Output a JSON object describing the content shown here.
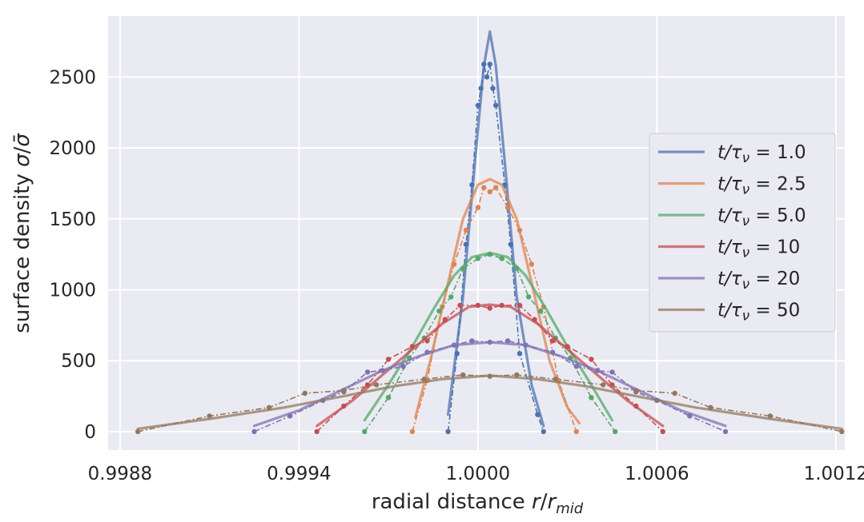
{
  "chart_data": {
    "type": "line",
    "xlabel": "radial distance r/r_mid",
    "ylabel": "surface density σ/σ̄",
    "x_ticks": [
      0.9988,
      0.9994,
      1.0,
      1.0006,
      1.0012
    ],
    "x_tick_labels": [
      "0.9988",
      "0.9994",
      "1.0000",
      "1.0006",
      "1.0012"
    ],
    "y_ticks": [
      0,
      500,
      1000,
      1500,
      2000,
      2500
    ],
    "y_tick_labels": [
      "0",
      "500",
      "1000",
      "1500",
      "2000",
      "2500"
    ],
    "xlim": [
      0.99876,
      1.00123
    ],
    "ylim": [
      -130,
      2930
    ],
    "grid": true,
    "legend_position": "center-right",
    "series": [
      {
        "name": "t/τ_ν = 1.0",
        "label_prefix": "t/τ",
        "label_sub": "ν",
        "label_value": "= 1.0",
        "color": "#4c72b0",
        "smooth": [
          [
            0.9999,
            120
          ],
          [
            0.99995,
            950
          ],
          [
            0.99999,
            1900
          ],
          [
            1.00002,
            2580
          ],
          [
            1.00004,
            2820
          ],
          [
            1.00006,
            2580
          ],
          [
            1.00009,
            1900
          ],
          [
            1.00013,
            950
          ],
          [
            1.00018,
            330
          ],
          [
            1.00022,
            40
          ]
        ],
        "points": [
          [
            0.9999,
            0
          ],
          [
            0.99993,
            550
          ],
          [
            0.99996,
            1320
          ],
          [
            0.99998,
            1740
          ],
          [
            1.0,
            2300
          ],
          [
            1.00001,
            2420
          ],
          [
            1.00002,
            2590
          ],
          [
            1.00003,
            2500
          ],
          [
            1.00004,
            2590
          ],
          [
            1.00005,
            2420
          ],
          [
            1.00006,
            2300
          ],
          [
            1.00009,
            1740
          ],
          [
            1.00011,
            1320
          ],
          [
            1.00014,
            550
          ],
          [
            1.0002,
            120
          ],
          [
            1.00022,
            0
          ]
        ]
      },
      {
        "name": "t/τ_ν = 2.5",
        "label_prefix": "t/τ",
        "label_sub": "ν",
        "label_value": "= 2.5",
        "color": "#dd8452",
        "smooth": [
          [
            0.99979,
            100
          ],
          [
            0.99984,
            500
          ],
          [
            0.9999,
            1050
          ],
          [
            0.99995,
            1500
          ],
          [
            1.0,
            1740
          ],
          [
            1.00004,
            1780
          ],
          [
            1.00008,
            1740
          ],
          [
            1.00013,
            1500
          ],
          [
            1.00018,
            1050
          ],
          [
            1.00024,
            500
          ],
          [
            1.0003,
            170
          ],
          [
            1.00034,
            60
          ]
        ],
        "points": [
          [
            0.99978,
            0
          ],
          [
            0.99983,
            360
          ],
          [
            0.99988,
            880
          ],
          [
            0.99992,
            1180
          ],
          [
            0.99996,
            1420
          ],
          [
            1.0,
            1580
          ],
          [
            1.00002,
            1720
          ],
          [
            1.00004,
            1690
          ],
          [
            1.00006,
            1720
          ],
          [
            1.0001,
            1580
          ],
          [
            1.00014,
            1420
          ],
          [
            1.00018,
            1180
          ],
          [
            1.00022,
            880
          ],
          [
            1.00027,
            360
          ],
          [
            1.00033,
            0
          ]
        ]
      },
      {
        "name": "t/τ_ν = 5.0",
        "label_prefix": "t/τ",
        "label_sub": "ν",
        "label_value": "= 5.0",
        "color": "#55a868",
        "smooth": [
          [
            0.99962,
            80
          ],
          [
            0.9997,
            330
          ],
          [
            0.99978,
            600
          ],
          [
            0.99985,
            860
          ],
          [
            0.99992,
            1100
          ],
          [
            0.99998,
            1230
          ],
          [
            1.00004,
            1260
          ],
          [
            1.0001,
            1230
          ],
          [
            1.00016,
            1100
          ],
          [
            1.00023,
            860
          ],
          [
            1.0003,
            600
          ],
          [
            1.00038,
            330
          ],
          [
            1.00045,
            80
          ]
        ],
        "points": [
          [
            0.99962,
            0
          ],
          [
            0.9997,
            240
          ],
          [
            0.99977,
            520
          ],
          [
            0.99982,
            660
          ],
          [
            0.99987,
            850
          ],
          [
            0.99991,
            950
          ],
          [
            0.99995,
            1150
          ],
          [
            1.0,
            1220
          ],
          [
            1.00004,
            1250
          ],
          [
            1.00008,
            1220
          ],
          [
            1.00013,
            1150
          ],
          [
            1.00017,
            950
          ],
          [
            1.00021,
            850
          ],
          [
            1.00026,
            660
          ],
          [
            1.00031,
            520
          ],
          [
            1.00038,
            240
          ],
          [
            1.00046,
            0
          ]
        ]
      },
      {
        "name": "t/τ_ν = 10",
        "label_prefix": "t/τ",
        "label_sub": "ν",
        "label_value": "= 10",
        "color": "#c44e52",
        "smooth": [
          [
            0.99946,
            40
          ],
          [
            0.99958,
            220
          ],
          [
            0.99968,
            400
          ],
          [
            0.99978,
            580
          ],
          [
            0.99988,
            760
          ],
          [
            0.99997,
            880
          ],
          [
            1.00004,
            895
          ],
          [
            1.00011,
            880
          ],
          [
            1.0002,
            760
          ],
          [
            1.0003,
            580
          ],
          [
            1.0004,
            400
          ],
          [
            1.0005,
            220
          ],
          [
            1.00062,
            40
          ]
        ],
        "points": [
          [
            0.99946,
            0
          ],
          [
            0.99955,
            180
          ],
          [
            0.99963,
            330
          ],
          [
            0.9997,
            510
          ],
          [
            0.99978,
            600
          ],
          [
            0.99983,
            640
          ],
          [
            0.99989,
            790
          ],
          [
            0.99994,
            890
          ],
          [
            1.0,
            890
          ],
          [
            1.00004,
            870
          ],
          [
            1.00008,
            890
          ],
          [
            1.00014,
            890
          ],
          [
            1.00019,
            790
          ],
          [
            1.00025,
            640
          ],
          [
            1.0003,
            600
          ],
          [
            1.00038,
            510
          ],
          [
            1.00045,
            330
          ],
          [
            1.00053,
            180
          ],
          [
            1.00062,
            0
          ]
        ]
      },
      {
        "name": "t/τ_ν = 20",
        "label_prefix": "t/τ",
        "label_sub": "ν",
        "label_value": "= 20",
        "color": "#8172b3",
        "smooth": [
          [
            0.99925,
            40
          ],
          [
            0.9994,
            150
          ],
          [
            0.99955,
            300
          ],
          [
            0.99968,
            430
          ],
          [
            0.9998,
            530
          ],
          [
            0.99992,
            610
          ],
          [
            1.00004,
            630
          ],
          [
            1.00016,
            610
          ],
          [
            1.00028,
            530
          ],
          [
            1.0004,
            430
          ],
          [
            1.00053,
            300
          ],
          [
            1.00068,
            150
          ],
          [
            1.00083,
            40
          ]
        ],
        "points": [
          [
            0.99925,
            0
          ],
          [
            0.99937,
            110
          ],
          [
            0.99948,
            220
          ],
          [
            0.99955,
            280
          ],
          [
            0.99963,
            420
          ],
          [
            0.99968,
            430
          ],
          [
            0.99975,
            460
          ],
          [
            0.99983,
            560
          ],
          [
            0.99992,
            610
          ],
          [
            0.99998,
            640
          ],
          [
            1.00004,
            630
          ],
          [
            1.0001,
            640
          ],
          [
            1.00016,
            610
          ],
          [
            1.00025,
            560
          ],
          [
            1.00033,
            460
          ],
          [
            1.0004,
            430
          ],
          [
            1.00045,
            420
          ],
          [
            1.00053,
            280
          ],
          [
            1.0006,
            220
          ],
          [
            1.00071,
            110
          ],
          [
            1.00083,
            0
          ]
        ]
      },
      {
        "name": "t/τ_ν = 50",
        "label_prefix": "t/τ",
        "label_sub": "ν",
        "label_value": "= 50",
        "color": "#937860",
        "smooth": [
          [
            0.99886,
            20
          ],
          [
            0.9991,
            90
          ],
          [
            0.99935,
            170
          ],
          [
            0.99955,
            250
          ],
          [
            0.99972,
            320
          ],
          [
            0.99988,
            370
          ],
          [
            1.00004,
            395
          ],
          [
            1.0002,
            370
          ],
          [
            1.00036,
            320
          ],
          [
            1.00053,
            250
          ],
          [
            1.00073,
            170
          ],
          [
            1.00098,
            90
          ],
          [
            1.00122,
            20
          ]
        ],
        "points": [
          [
            0.99886,
            0
          ],
          [
            0.9991,
            110
          ],
          [
            0.9993,
            170
          ],
          [
            0.99942,
            270
          ],
          [
            0.99955,
            290
          ],
          [
            0.99966,
            330
          ],
          [
            0.99982,
            370
          ],
          [
            0.99995,
            400
          ],
          [
            1.00004,
            390
          ],
          [
            1.00013,
            400
          ],
          [
            1.00026,
            370
          ],
          [
            1.00042,
            330
          ],
          [
            1.00053,
            290
          ],
          [
            1.00066,
            270
          ],
          [
            1.00078,
            170
          ],
          [
            1.00098,
            110
          ],
          [
            1.00122,
            0
          ]
        ]
      }
    ]
  }
}
